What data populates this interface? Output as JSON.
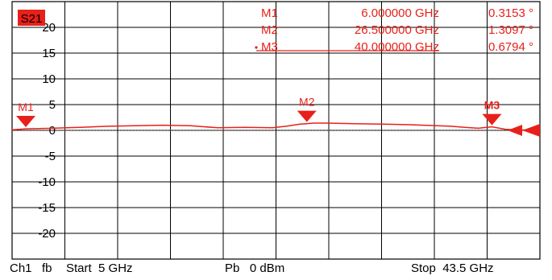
{
  "colors": {
    "trace": "#e8201a",
    "grid": "#000000",
    "background": "#ffffff",
    "badge": "#e8201a"
  },
  "chart_data": {
    "type": "line",
    "trace_name": "S21",
    "x_start_ghz": 5,
    "x_stop_ghz": 43.5,
    "ylim": [
      -25,
      25
    ],
    "y_ticks": [
      20,
      15,
      10,
      5,
      0,
      -5,
      -10,
      -15,
      -20
    ],
    "y_tick_labels": [
      "20",
      "15",
      "10",
      "5",
      "0",
      "-5",
      "-10",
      "-15",
      "-20"
    ],
    "grid": true,
    "reference_level": 0,
    "series": [
      {
        "x": [
          5,
          6,
          7,
          8,
          9,
          10,
          12,
          14,
          16,
          18,
          20,
          22,
          24,
          25,
          26,
          26.5,
          27,
          28,
          30,
          32,
          34,
          35,
          36,
          37,
          38,
          39,
          40,
          41,
          42,
          43.5
        ],
        "values": [
          0.1,
          0.3,
          0.35,
          0.4,
          0.5,
          0.6,
          0.8,
          0.9,
          1.0,
          0.9,
          0.5,
          0.6,
          0.5,
          0.8,
          1.2,
          1.3,
          1.4,
          1.4,
          1.3,
          1.2,
          1.1,
          1.0,
          0.9,
          0.8,
          0.6,
          0.4,
          0.68,
          0.2,
          0.1,
          0.0
        ]
      }
    ],
    "markers": [
      {
        "name": "M1",
        "freq_label": "6.000000 GHz",
        "value_label": "0.3153 °",
        "x": 6.0,
        "y": 0.3153,
        "active": false
      },
      {
        "name": "M2",
        "freq_label": "26.500000 GHz",
        "value_label": "1.3097 °",
        "x": 26.5,
        "y": 1.3097,
        "active": false
      },
      {
        "name": "M3",
        "freq_label": "40.000000 GHz",
        "value_label": "0.6794 °",
        "x": 40.0,
        "y": 0.6794,
        "active": true
      }
    ]
  },
  "status_bar": {
    "channel": "Ch1",
    "format": "fb",
    "start": "Start  5 GHz",
    "power": "Pb   0 dBm",
    "stop": "Stop  43.5 GHz"
  }
}
